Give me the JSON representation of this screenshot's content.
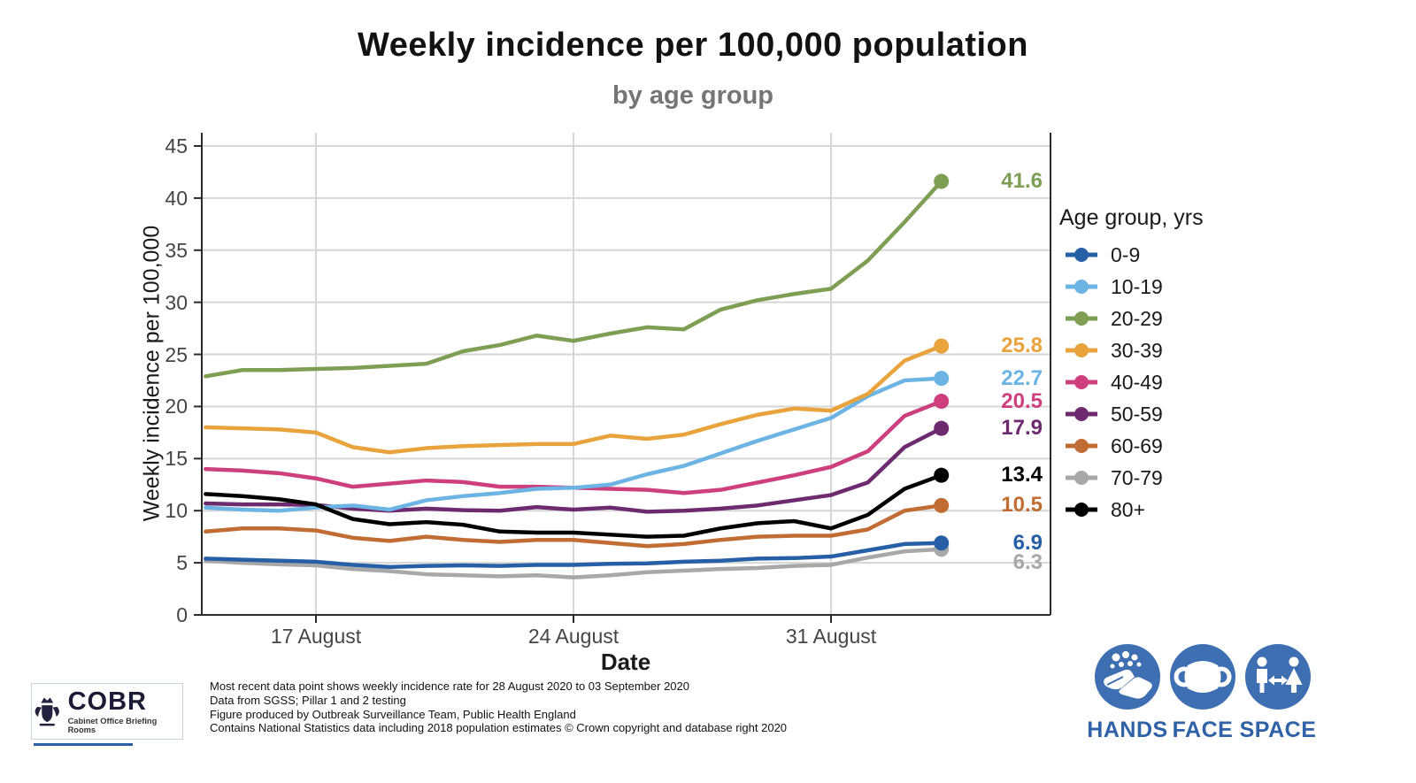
{
  "title": "Weekly incidence per 100,000 population",
  "subtitle": "by age group",
  "axes": {
    "y_label": "Weekly incidence per 100,000",
    "x_label": "Date",
    "y_ticks": [
      0,
      5,
      10,
      15,
      20,
      25,
      30,
      35,
      40,
      45
    ],
    "x_tick_labels": [
      "17 August",
      "24 August",
      "31 August"
    ]
  },
  "legend": {
    "title": "Age group, yrs"
  },
  "chart_data": {
    "type": "line",
    "title": "Weekly incidence per 100,000 population",
    "subtitle": "by age group",
    "xlabel": "Date",
    "ylabel": "Weekly incidence per 100,000",
    "ylim": [
      0,
      45
    ],
    "grid": true,
    "legend_position": "right",
    "x": [
      "14 Aug",
      "15 Aug",
      "16 Aug",
      "17 Aug",
      "18 Aug",
      "19 Aug",
      "20 Aug",
      "21 Aug",
      "22 Aug",
      "23 Aug",
      "24 Aug",
      "25 Aug",
      "26 Aug",
      "27 Aug",
      "28 Aug",
      "29 Aug",
      "30 Aug",
      "31 Aug",
      "01 Sep",
      "02 Sep",
      "03 Sep"
    ],
    "x_tick_labels": [
      "17 August",
      "24 August",
      "31 August"
    ],
    "x_tick_positions": [
      3,
      10,
      17
    ],
    "series": [
      {
        "name": "0-9",
        "color": "#275fa6",
        "end_label": "6.9",
        "values": [
          5.4,
          5.3,
          5.2,
          5.1,
          4.8,
          4.6,
          4.7,
          4.75,
          4.7,
          4.8,
          4.8,
          4.9,
          4.95,
          5.1,
          5.2,
          5.4,
          5.45,
          5.6,
          6.2,
          6.8,
          6.9
        ]
      },
      {
        "name": "10-19",
        "color": "#6cb4e4",
        "end_label": "22.7",
        "values": [
          10.3,
          10.1,
          10.0,
          10.3,
          10.5,
          10.1,
          11.0,
          11.4,
          11.7,
          12.1,
          12.2,
          12.5,
          13.5,
          14.3,
          15.5,
          16.7,
          17.8,
          18.9,
          21.0,
          22.5,
          22.7
        ]
      },
      {
        "name": "20-29",
        "color": "#7e9e54",
        "end_label": "41.6",
        "values": [
          22.9,
          23.5,
          23.5,
          23.6,
          23.7,
          23.9,
          24.1,
          25.3,
          25.9,
          26.8,
          26.3,
          27.0,
          27.6,
          27.4,
          29.3,
          30.2,
          30.8,
          31.3,
          34.0,
          37.7,
          41.6
        ]
      },
      {
        "name": "30-39",
        "color": "#e8a33d",
        "end_label": "25.8",
        "values": [
          18.0,
          17.9,
          17.8,
          17.5,
          16.1,
          15.6,
          16.0,
          16.2,
          16.3,
          16.4,
          16.4,
          17.2,
          16.9,
          17.3,
          18.3,
          19.2,
          19.8,
          19.6,
          21.2,
          24.4,
          25.8
        ]
      },
      {
        "name": "40-49",
        "color": "#ce3f7d",
        "end_label": "20.5",
        "values": [
          14.0,
          13.85,
          13.6,
          13.1,
          12.3,
          12.6,
          12.9,
          12.75,
          12.3,
          12.3,
          12.2,
          12.1,
          12.0,
          11.7,
          12.0,
          12.7,
          13.4,
          14.2,
          15.7,
          19.1,
          20.5
        ]
      },
      {
        "name": "50-59",
        "color": "#6e2a6e",
        "end_label": "17.9",
        "values": [
          10.7,
          10.6,
          10.6,
          10.55,
          10.2,
          10.0,
          10.2,
          10.05,
          10.0,
          10.35,
          10.1,
          10.3,
          9.9,
          10.0,
          10.2,
          10.5,
          11.0,
          11.5,
          12.7,
          16.1,
          17.9
        ]
      },
      {
        "name": "60-69",
        "color": "#c06c33",
        "end_label": "10.5",
        "values": [
          8.0,
          8.3,
          8.3,
          8.1,
          7.4,
          7.1,
          7.5,
          7.2,
          7.0,
          7.2,
          7.2,
          6.9,
          6.6,
          6.8,
          7.2,
          7.5,
          7.6,
          7.6,
          8.2,
          10.0,
          10.5
        ]
      },
      {
        "name": "70-79",
        "color": "#a8a8a8",
        "end_label": "6.3",
        "values": [
          5.2,
          5.0,
          4.85,
          4.75,
          4.4,
          4.2,
          3.9,
          3.8,
          3.7,
          3.8,
          3.6,
          3.8,
          4.1,
          4.25,
          4.4,
          4.5,
          4.7,
          4.8,
          5.5,
          6.1,
          6.3
        ]
      },
      {
        "name": "80+",
        "color": "#000000",
        "end_label": "13.4",
        "values": [
          11.6,
          11.4,
          11.1,
          10.6,
          9.2,
          8.7,
          8.9,
          8.65,
          8.0,
          7.9,
          7.9,
          7.7,
          7.5,
          7.6,
          8.3,
          8.8,
          9.0,
          8.3,
          9.6,
          12.1,
          13.4
        ]
      }
    ]
  },
  "footer": {
    "lines": [
      "Most recent data point shows weekly incidence rate for 28 August 2020 to 03 September 2020",
      "Data from SGSS; Pillar 1 and 2 testing",
      "Figure produced by Outbreak Surveillance Team, Public Health England",
      "Contains National Statistics data including 2018 population estimates © Crown copyright and database right 2020"
    ]
  },
  "logo": {
    "name": "COBR",
    "caption": "Cabinet Office Briefing Rooms"
  },
  "campaign": {
    "color": "#3e6fb2",
    "items": [
      {
        "label": "HANDS"
      },
      {
        "label": "FACE"
      },
      {
        "label": "SPACE"
      }
    ]
  }
}
